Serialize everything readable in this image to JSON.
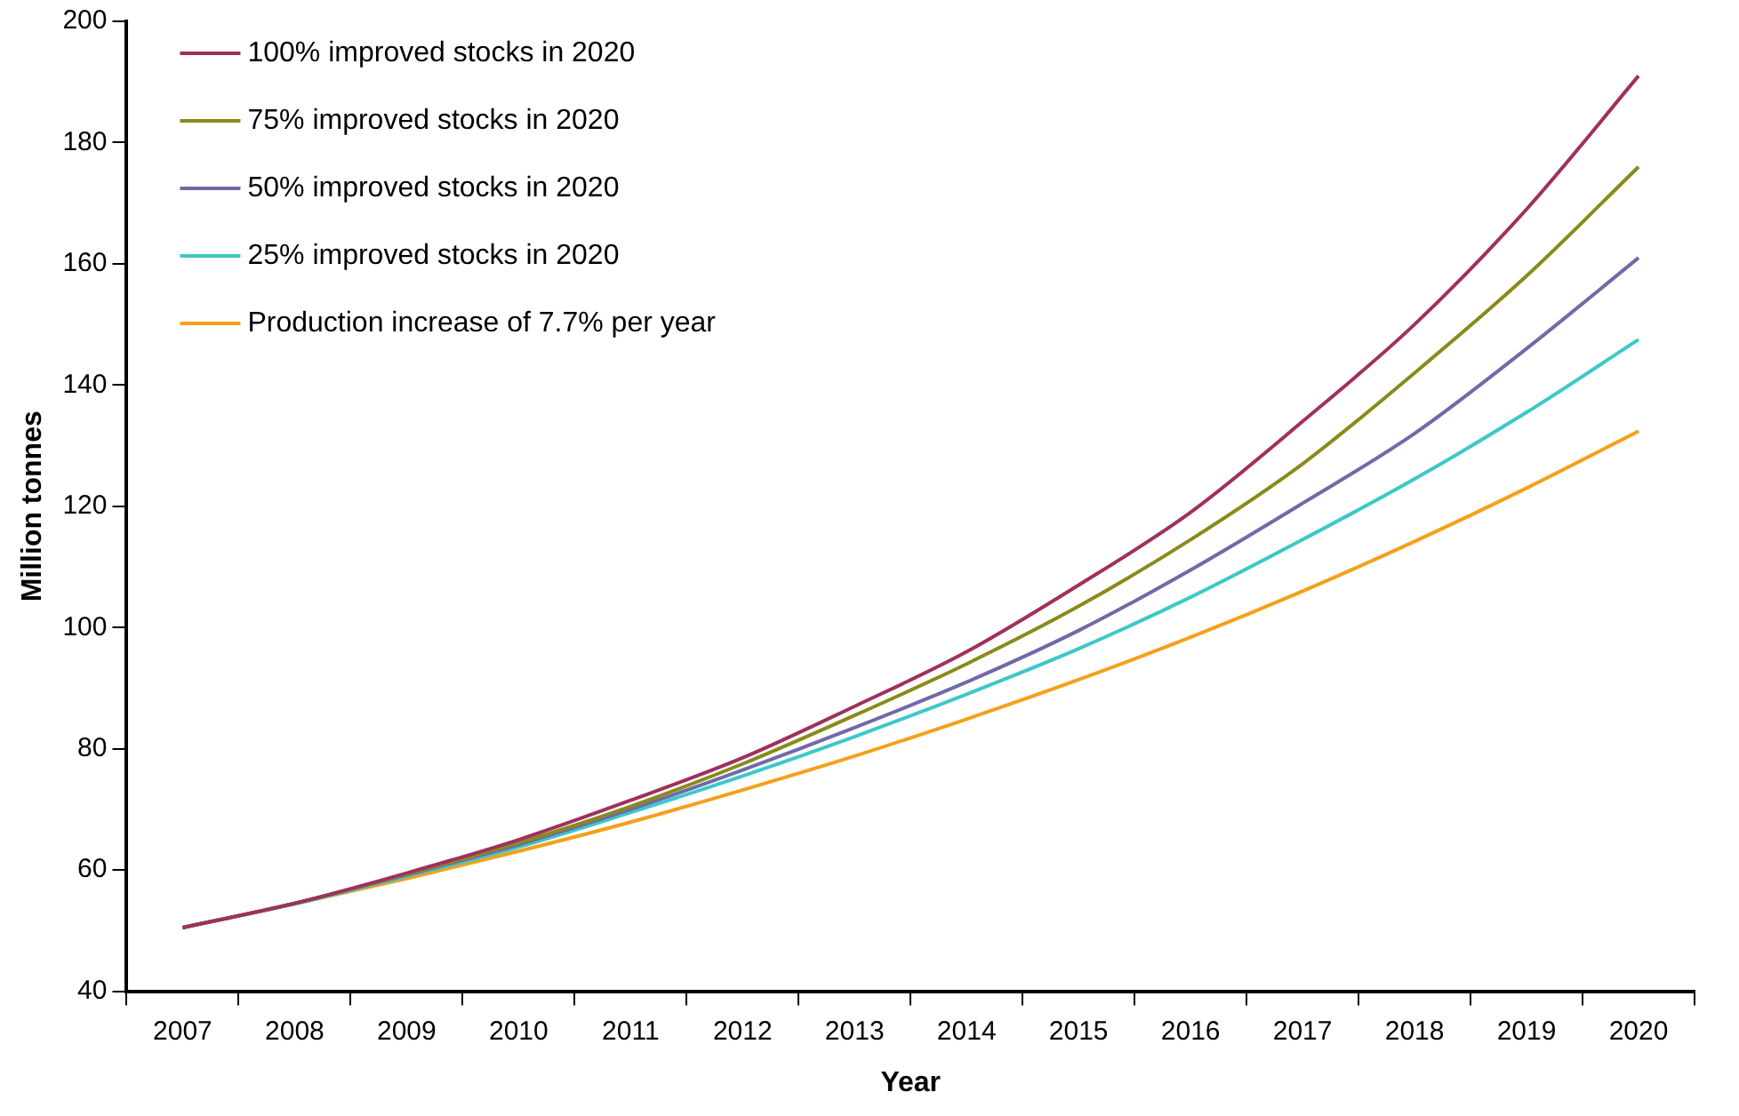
{
  "chart_data": {
    "type": "line",
    "xlabel": "Year",
    "ylabel": "Million tonnes",
    "categories": [
      "2007",
      "2008",
      "2009",
      "2010",
      "2011",
      "2012",
      "2013",
      "2014",
      "2015",
      "2016",
      "2017",
      "2018",
      "2019",
      "2020"
    ],
    "ylim": [
      40,
      200
    ],
    "yticks": [
      40,
      60,
      80,
      100,
      120,
      140,
      160,
      180,
      200
    ],
    "grid": false,
    "legend": "top left",
    "marker": "none",
    "line_style": "solid",
    "series": [
      {
        "name": "100% improved stocks in 2020",
        "color": "#a0305e",
        "values": [
          50.5,
          54.5,
          59.5,
          65,
          71.5,
          78.5,
          87,
          96,
          107,
          119,
          134,
          150,
          169,
          191
        ]
      },
      {
        "name": "75% improved stocks in 2020",
        "color": "#8a8a1a",
        "values": [
          50.5,
          54.5,
          59.3,
          64.5,
          70.5,
          77.5,
          85.5,
          94,
          103.5,
          114.5,
          127,
          142,
          158,
          176
        ]
      },
      {
        "name": "50% improved stocks in 2020",
        "color": "#6f6aa8",
        "values": [
          50.5,
          54.5,
          59.2,
          64.2,
          70,
          76.5,
          83.5,
          91,
          99.5,
          109.5,
          120.5,
          132,
          146,
          161
        ]
      },
      {
        "name": "25% improved stocks in 2020",
        "color": "#3cc8c8",
        "values": [
          50.5,
          54.4,
          59,
          63.8,
          69.5,
          75.5,
          82,
          89,
          96.5,
          105,
          114.5,
          124.5,
          135.5,
          147.5
        ]
      },
      {
        "name": "Production increase of 7.7% per year",
        "color": "#f5a01a",
        "values": [
          50.5,
          54.4,
          58.6,
          63.1,
          67.9,
          73.2,
          78.8,
          84.9,
          91.4,
          98.4,
          106,
          114.2,
          123,
          132.4
        ]
      }
    ]
  }
}
